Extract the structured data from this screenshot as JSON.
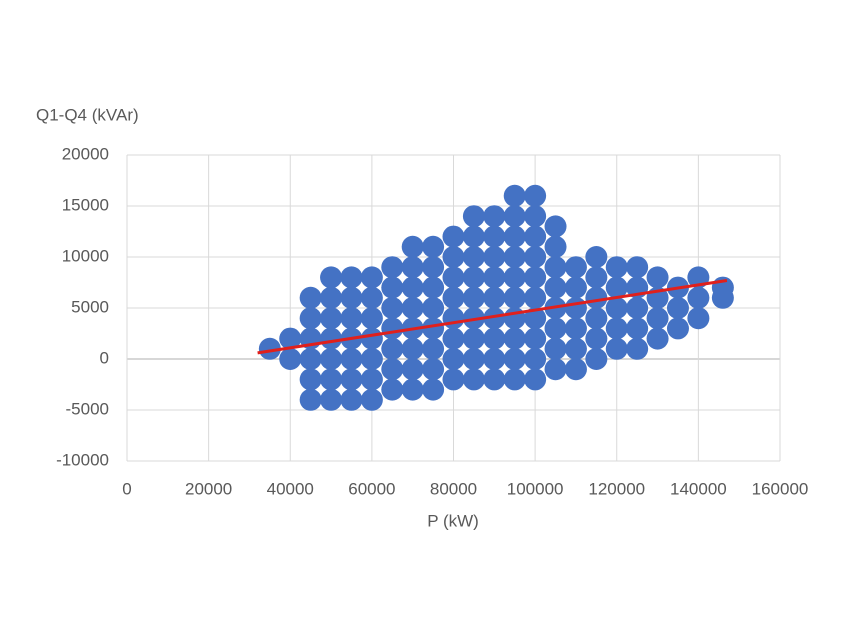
{
  "chart_data": {
    "type": "scatter",
    "y_axis_label": "Q1-Q4 (kVAr)",
    "x_axis_label": "P (kW)",
    "xlim": [
      0,
      160000
    ],
    "ylim": [
      -10000,
      20000
    ],
    "xticks": [
      0,
      20000,
      40000,
      60000,
      80000,
      100000,
      120000,
      140000,
      160000
    ],
    "yticks": [
      -10000,
      -5000,
      0,
      5000,
      10000,
      15000,
      20000
    ],
    "grid": true,
    "series": [
      {
        "type": "scatter",
        "color": "#4472c4",
        "x": [
          35000,
          40000,
          40000,
          45000,
          45000,
          45000,
          45000,
          45000,
          45000,
          50000,
          50000,
          50000,
          50000,
          50000,
          50000,
          50000,
          55000,
          55000,
          55000,
          55000,
          55000,
          55000,
          55000,
          60000,
          60000,
          60000,
          60000,
          60000,
          60000,
          60000,
          65000,
          65000,
          65000,
          65000,
          65000,
          65000,
          65000,
          70000,
          70000,
          70000,
          70000,
          70000,
          70000,
          70000,
          70000,
          75000,
          75000,
          75000,
          75000,
          75000,
          75000,
          75000,
          75000,
          80000,
          80000,
          80000,
          80000,
          80000,
          80000,
          80000,
          80000,
          85000,
          85000,
          85000,
          85000,
          85000,
          85000,
          85000,
          85000,
          85000,
          90000,
          90000,
          90000,
          90000,
          90000,
          90000,
          90000,
          90000,
          90000,
          95000,
          95000,
          95000,
          95000,
          95000,
          95000,
          95000,
          95000,
          95000,
          95000,
          100000,
          100000,
          100000,
          100000,
          100000,
          100000,
          100000,
          100000,
          100000,
          100000,
          105000,
          105000,
          105000,
          105000,
          105000,
          105000,
          105000,
          105000,
          110000,
          110000,
          110000,
          110000,
          110000,
          110000,
          115000,
          115000,
          115000,
          115000,
          115000,
          115000,
          120000,
          120000,
          120000,
          120000,
          120000,
          125000,
          125000,
          125000,
          125000,
          125000,
          130000,
          130000,
          130000,
          130000,
          135000,
          135000,
          135000,
          140000,
          140000,
          140000,
          146000,
          146000
        ],
        "values": [
          1000,
          0,
          2000,
          -4000,
          -2000,
          0,
          2000,
          4000,
          6000,
          -4000,
          -2000,
          0,
          2000,
          4000,
          6000,
          8000,
          -4000,
          -2000,
          0,
          2000,
          4000,
          6000,
          8000,
          -4000,
          -2000,
          0,
          2000,
          4000,
          6000,
          8000,
          -3000,
          -1000,
          1000,
          3000,
          5000,
          7000,
          9000,
          -3000,
          -1000,
          1000,
          3000,
          5000,
          7000,
          9000,
          11000,
          -3000,
          -1000,
          1000,
          3000,
          5000,
          7000,
          9000,
          11000,
          -2000,
          0,
          2000,
          4000,
          6000,
          8000,
          10000,
          12000,
          -2000,
          0,
          2000,
          4000,
          6000,
          8000,
          10000,
          12000,
          14000,
          -2000,
          0,
          2000,
          4000,
          6000,
          8000,
          10000,
          12000,
          14000,
          -2000,
          0,
          2000,
          4000,
          6000,
          8000,
          10000,
          12000,
          14000,
          16000,
          -2000,
          0,
          2000,
          4000,
          6000,
          8000,
          10000,
          12000,
          14000,
          16000,
          -1000,
          1000,
          3000,
          5000,
          7000,
          9000,
          11000,
          13000,
          -1000,
          1000,
          3000,
          5000,
          7000,
          9000,
          0,
          2000,
          4000,
          6000,
          8000,
          10000,
          1000,
          3000,
          5000,
          7000,
          9000,
          1000,
          3000,
          5000,
          7000,
          9000,
          2000,
          4000,
          6000,
          8000,
          3000,
          5000,
          7000,
          4000,
          6000,
          8000,
          6000,
          7000
        ]
      },
      {
        "type": "line",
        "color": "#e0201c",
        "x": [
          32000,
          147000
        ],
        "values": [
          600,
          7700
        ]
      }
    ]
  }
}
